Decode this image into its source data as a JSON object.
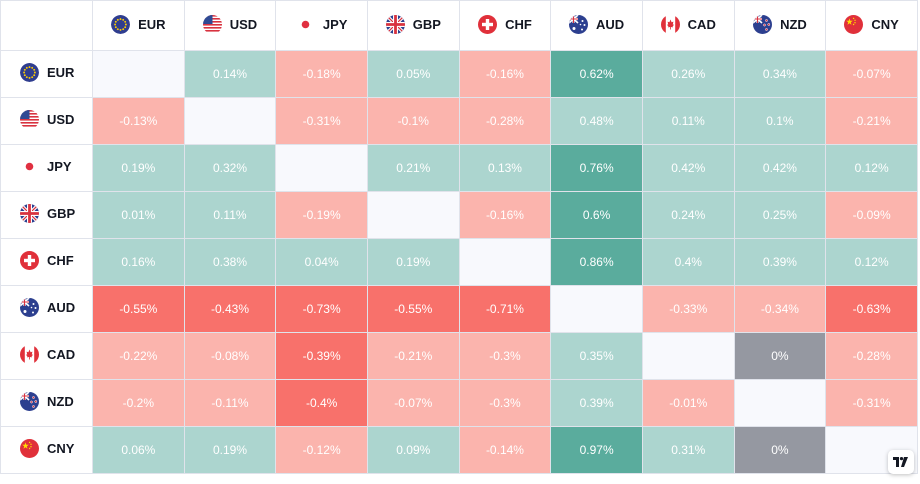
{
  "currencies": [
    "EUR",
    "USD",
    "JPY",
    "GBP",
    "CHF",
    "AUD",
    "CAD",
    "NZD",
    "CNY"
  ],
  "flags": {
    "EUR": "eu-flag-icon",
    "USD": "us-flag-icon",
    "JPY": "japan-flag-icon",
    "GBP": "uk-flag-icon",
    "CHF": "switzerland-flag-icon",
    "AUD": "australia-flag-icon",
    "CAD": "canada-flag-icon",
    "NZD": "new-zealand-flag-icon",
    "CNY": "china-flag-icon"
  },
  "colors": {
    "strong_up": "#5aac9d",
    "up": "#acd5cf",
    "down": "#fbb4ad",
    "strong_down": "#f8716b",
    "zero": "#9598a1",
    "self": "#f8f9fd"
  },
  "matrix": [
    [
      "",
      "0.14%",
      "-0.18%",
      "0.05%",
      "-0.16%",
      "0.62%",
      "0.26%",
      "0.34%",
      "-0.07%"
    ],
    [
      "-0.13%",
      "",
      "-0.31%",
      "-0.1%",
      "-0.28%",
      "0.48%",
      "0.11%",
      "0.1%",
      "-0.21%"
    ],
    [
      "0.19%",
      "0.32%",
      "",
      "0.21%",
      "0.13%",
      "0.76%",
      "0.42%",
      "0.42%",
      "0.12%"
    ],
    [
      "0.01%",
      "0.11%",
      "-0.19%",
      "",
      "-0.16%",
      "0.6%",
      "0.24%",
      "0.25%",
      "-0.09%"
    ],
    [
      "0.16%",
      "0.38%",
      "0.04%",
      "0.19%",
      "",
      "0.86%",
      "0.4%",
      "0.39%",
      "0.12%"
    ],
    [
      "-0.55%",
      "-0.43%",
      "-0.73%",
      "-0.55%",
      "-0.71%",
      "",
      "-0.33%",
      "-0.34%",
      "-0.63%"
    ],
    [
      "-0.22%",
      "-0.08%",
      "-0.39%",
      "-0.21%",
      "-0.3%",
      "0.35%",
      "",
      "0%",
      "-0.28%"
    ],
    [
      "-0.2%",
      "-0.11%",
      "-0.4%",
      "-0.07%",
      "-0.3%",
      "0.39%",
      "-0.01%",
      "",
      "-0.31%"
    ],
    [
      "0.06%",
      "0.19%",
      "-0.12%",
      "0.09%",
      "-0.14%",
      "0.97%",
      "0.31%",
      "0%",
      ""
    ]
  ],
  "cell_colors": [
    [
      "self",
      "up",
      "down",
      "up",
      "down",
      "strong_up",
      "up",
      "up",
      "down"
    ],
    [
      "down",
      "self",
      "down",
      "down",
      "down",
      "up",
      "up",
      "up",
      "down"
    ],
    [
      "up",
      "up",
      "self",
      "up",
      "up",
      "strong_up",
      "up",
      "up",
      "up"
    ],
    [
      "up",
      "up",
      "down",
      "self",
      "down",
      "strong_up",
      "up",
      "up",
      "down"
    ],
    [
      "up",
      "up",
      "up",
      "up",
      "self",
      "strong_up",
      "up",
      "up",
      "up"
    ],
    [
      "strong_down",
      "strong_down",
      "strong_down",
      "strong_down",
      "strong_down",
      "self",
      "down",
      "down",
      "strong_down"
    ],
    [
      "down",
      "down",
      "strong_down",
      "down",
      "down",
      "up",
      "self",
      "zero",
      "down"
    ],
    [
      "down",
      "down",
      "strong_down",
      "down",
      "down",
      "up",
      "down",
      "self",
      "down"
    ],
    [
      "up",
      "up",
      "down",
      "up",
      "down",
      "strong_up",
      "up",
      "zero",
      "self"
    ]
  ],
  "logo": "tradingview-logo-icon",
  "logo_text": "TV"
}
